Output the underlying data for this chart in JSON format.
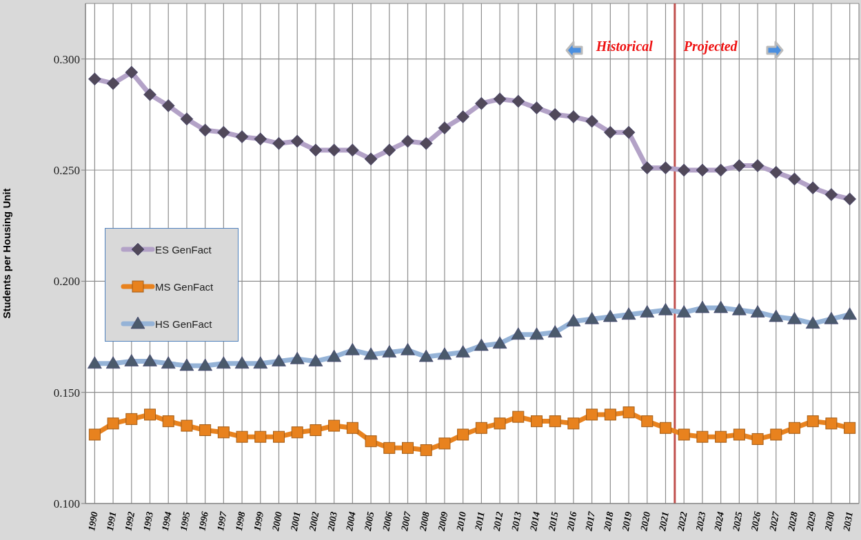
{
  "chart_data": {
    "type": "line",
    "ylabel": "Students per Housing Unit",
    "x": [
      1990,
      1991,
      1992,
      1993,
      1994,
      1995,
      1996,
      1997,
      1998,
      1999,
      2000,
      2001,
      2002,
      2003,
      2004,
      2005,
      2006,
      2007,
      2008,
      2009,
      2010,
      2011,
      2012,
      2013,
      2014,
      2015,
      2016,
      2017,
      2018,
      2019,
      2020,
      2021,
      2022,
      2023,
      2024,
      2025,
      2026,
      2027,
      2028,
      2029,
      2030,
      2031
    ],
    "xlim": [
      1989.5,
      2031.5
    ],
    "xticks": [
      1990,
      1991,
      1992,
      1993,
      1994,
      1995,
      1996,
      1997,
      1998,
      1999,
      2000,
      2001,
      2002,
      2003,
      2004,
      2005,
      2006,
      2007,
      2008,
      2009,
      2010,
      2011,
      2012,
      2013,
      2014,
      2015,
      2016,
      2017,
      2018,
      2019,
      2020,
      2021,
      2022,
      2023,
      2024,
      2025,
      2026,
      2027,
      2028,
      2029,
      2030,
      2031
    ],
    "ylim": [
      0.1,
      0.325
    ],
    "yticks": [
      {
        "value": 0.1,
        "label": "0.100"
      },
      {
        "value": 0.15,
        "label": "0.150"
      },
      {
        "value": 0.2,
        "label": "0.200"
      },
      {
        "value": 0.25,
        "label": "0.250"
      },
      {
        "value": 0.3,
        "label": "0.300"
      }
    ],
    "series": [
      {
        "name": "ES GenFact",
        "color": "#b3a2c7",
        "marker": "diamond",
        "values": [
          0.291,
          0.289,
          0.294,
          0.284,
          0.279,
          0.273,
          0.268,
          0.267,
          0.265,
          0.264,
          0.262,
          0.263,
          0.259,
          0.259,
          0.259,
          0.255,
          0.259,
          0.263,
          0.262,
          0.269,
          0.274,
          0.28,
          0.282,
          0.281,
          0.278,
          0.275,
          0.274,
          0.272,
          0.267,
          0.267,
          0.251,
          0.251,
          0.25,
          0.25,
          0.25,
          0.252,
          0.252,
          0.249,
          0.246,
          0.242,
          0.239,
          0.237
        ]
      },
      {
        "name": "MS GenFact",
        "color": "#e8821e",
        "marker": "square",
        "values": [
          0.131,
          0.136,
          0.138,
          0.14,
          0.137,
          0.135,
          0.133,
          0.132,
          0.13,
          0.13,
          0.13,
          0.132,
          0.133,
          0.135,
          0.134,
          0.128,
          0.125,
          0.125,
          0.124,
          0.127,
          0.131,
          0.134,
          0.136,
          0.139,
          0.137,
          0.137,
          0.136,
          0.14,
          0.14,
          0.141,
          0.137,
          0.134,
          0.131,
          0.13,
          0.13,
          0.131,
          0.129,
          0.131,
          0.134,
          0.137,
          0.136,
          0.134
        ]
      },
      {
        "name": "HS GenFact",
        "color": "#95b3d7",
        "marker": "triangle",
        "values": [
          0.163,
          0.163,
          0.164,
          0.164,
          0.163,
          0.162,
          0.162,
          0.163,
          0.163,
          0.163,
          0.164,
          0.165,
          0.164,
          0.166,
          0.169,
          0.167,
          0.168,
          0.169,
          0.166,
          0.167,
          0.168,
          0.171,
          0.172,
          0.176,
          0.176,
          0.177,
          0.182,
          0.183,
          0.184,
          0.185,
          0.186,
          0.187,
          0.186,
          0.188,
          0.188,
          0.187,
          0.186,
          0.184,
          0.183,
          0.181,
          0.183,
          0.185
        ]
      }
    ],
    "ref_lines": [
      {
        "axis": "x",
        "value": 2021.5,
        "color": "#c0504d"
      }
    ],
    "annotations": [
      "Historical",
      "Projected"
    ],
    "grid": true,
    "legend": "left",
    "line_style": "solid"
  }
}
